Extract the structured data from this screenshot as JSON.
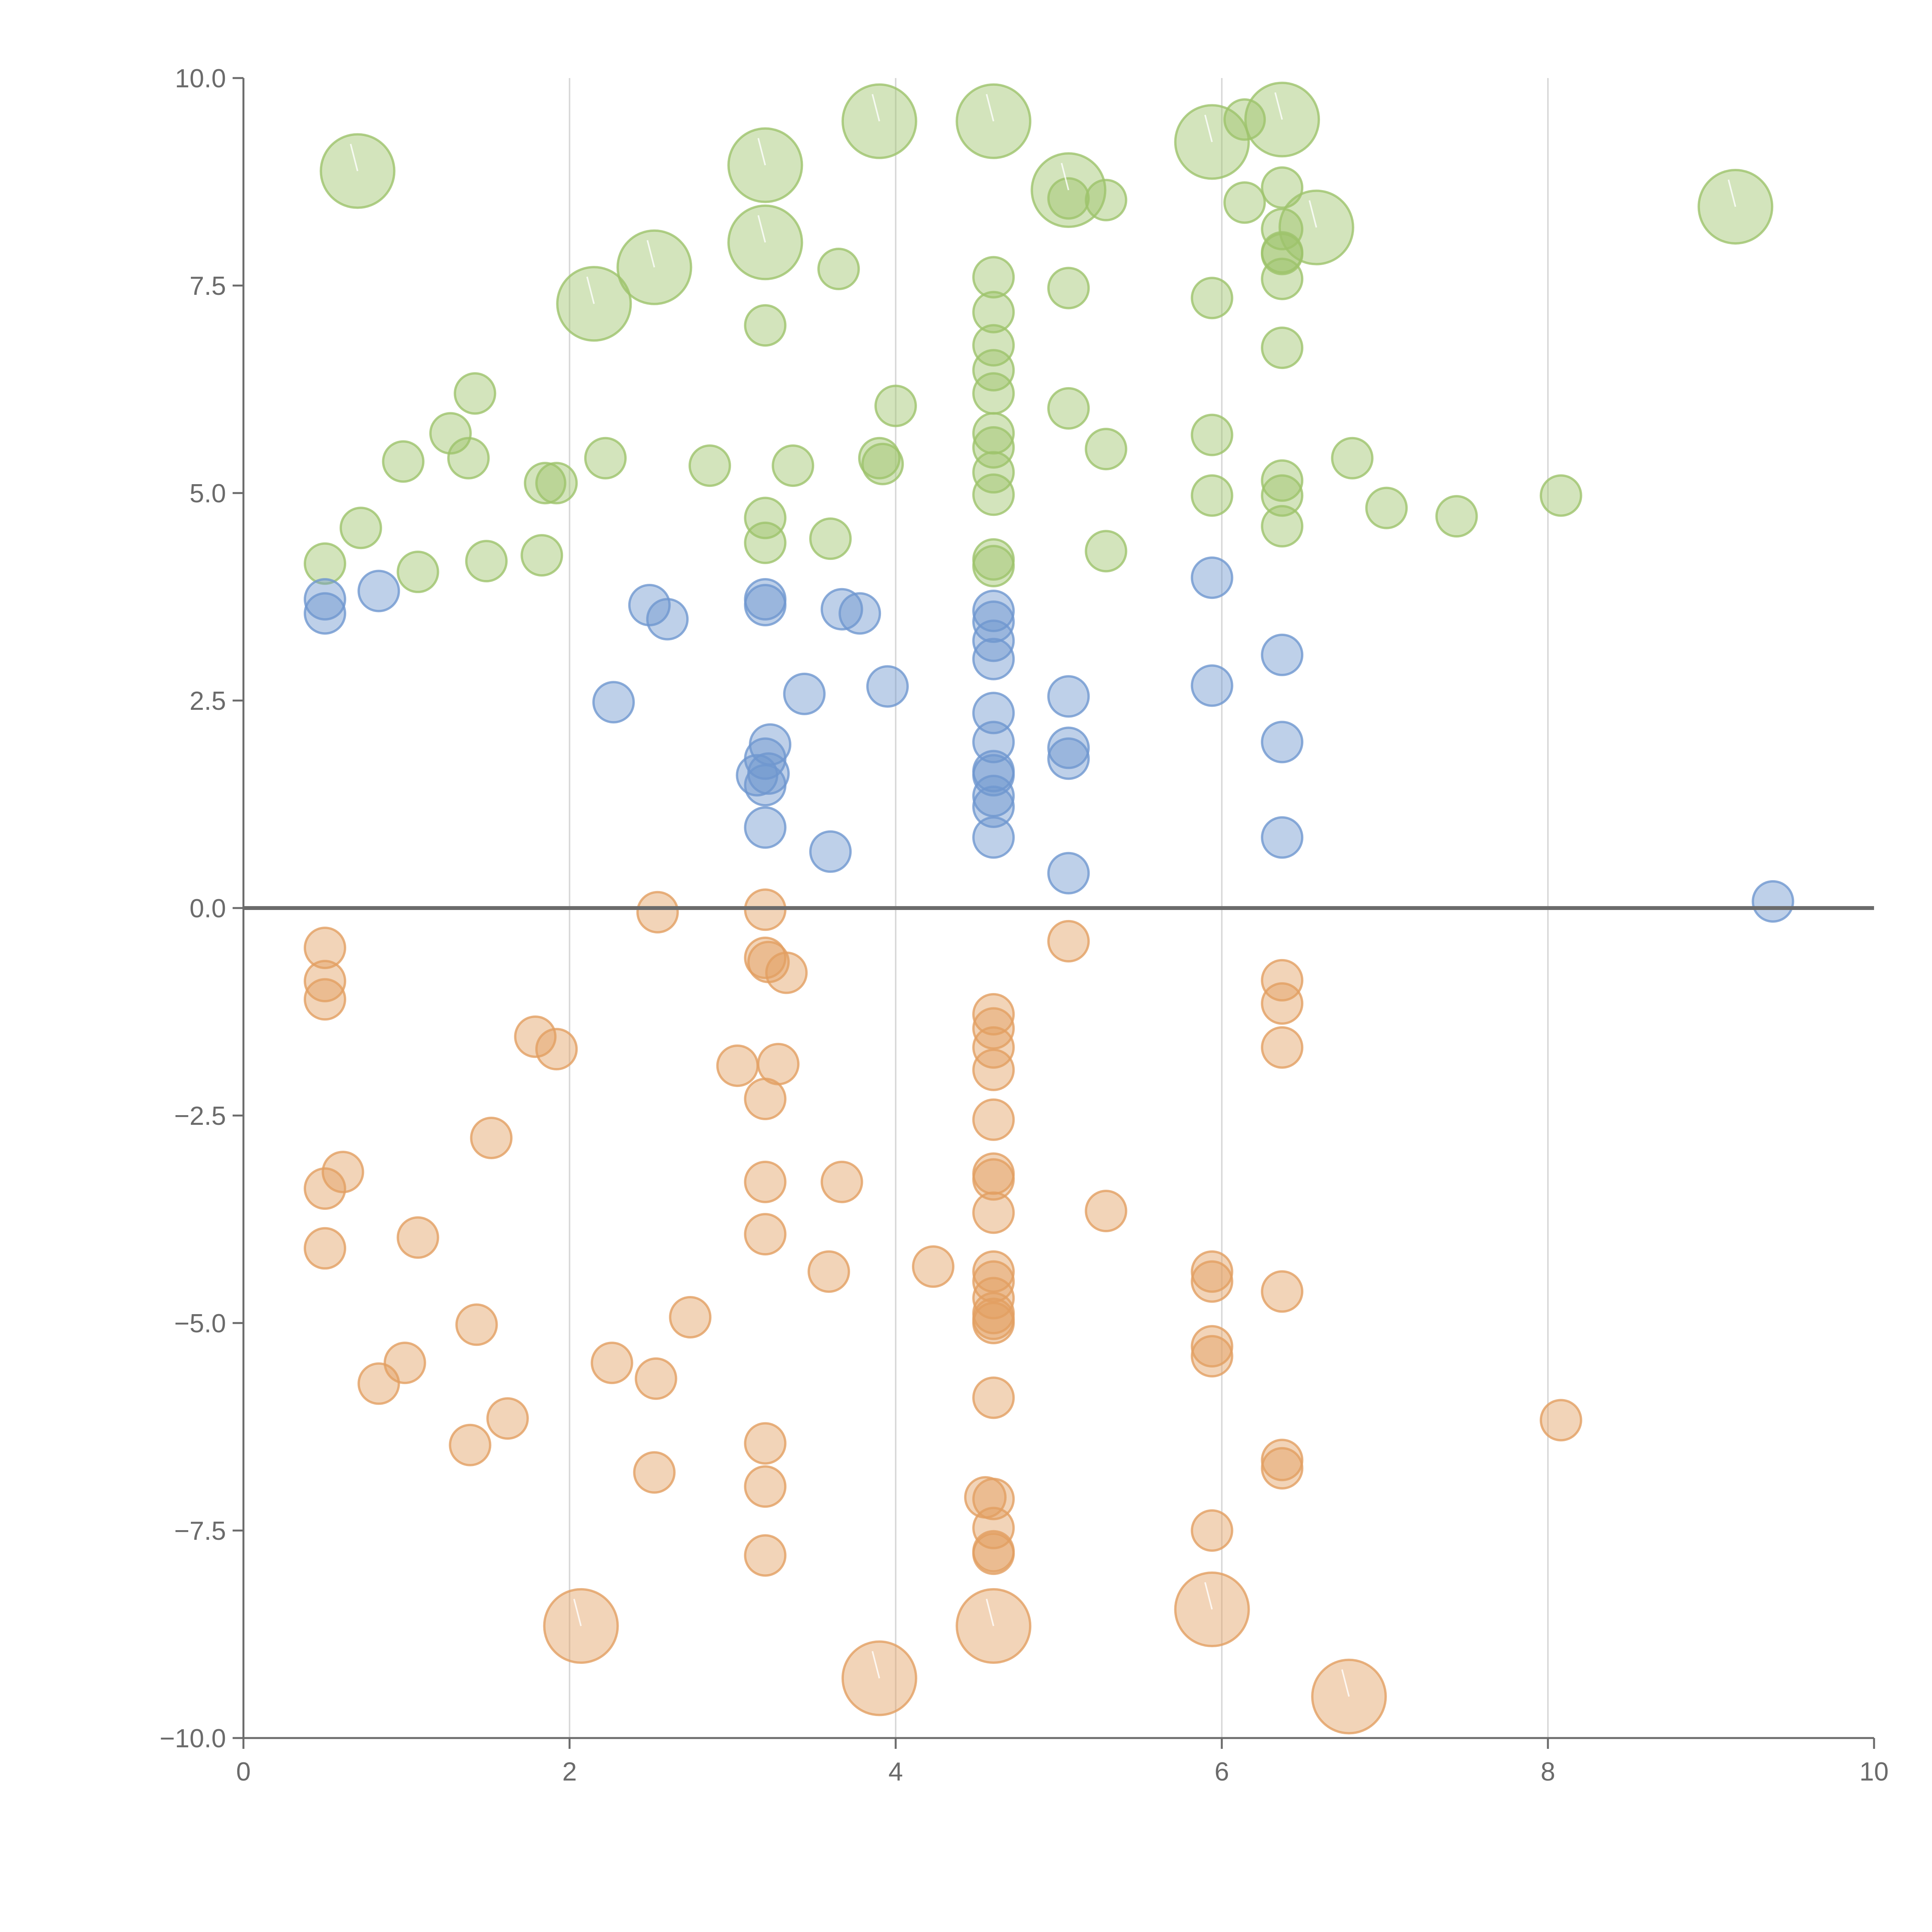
{
  "chart_data": {
    "type": "scatter",
    "title": "",
    "xlabel": "",
    "ylabel": "",
    "xlim": [
      0,
      10
    ],
    "ylim": [
      -10,
      10
    ],
    "x_ticks": [
      0,
      2,
      4,
      6,
      8,
      10
    ],
    "x_tick_labels": [
      "0",
      "2",
      "4",
      "6",
      "8",
      "10"
    ],
    "y_ticks": [
      -10,
      -7.5,
      -5,
      -2.5,
      0,
      2.5,
      5,
      7.5,
      10
    ],
    "y_tick_labels": [
      "−10.0",
      "−7.5",
      "−5.0",
      "−2.5",
      "0.0",
      "2.5",
      "5.0",
      "7.5",
      "10.0"
    ],
    "vertical_grid_at": [
      2,
      4,
      6,
      8
    ],
    "reference_line_y": 0,
    "colors": {
      "green": "#9dc36b",
      "blue": "#6f97cf",
      "orange": "#e29f61",
      "axis": "#6b6b6b",
      "grid": "#d9d9d9",
      "zero_line": "#6b6b6b"
    },
    "series": [
      {
        "name": "green",
        "color": "#9dc36b",
        "points": [
          [
            0.5,
            4.15
          ],
          [
            0.72,
            4.58
          ],
          [
            0.98,
            5.38
          ],
          [
            1.07,
            4.05
          ],
          [
            1.27,
            5.72
          ],
          [
            1.38,
            5.42
          ],
          [
            1.42,
            6.2
          ],
          [
            1.49,
            4.18
          ],
          [
            1.83,
            4.25
          ],
          [
            1.85,
            5.12
          ],
          [
            1.92,
            5.12
          ],
          [
            2.22,
            5.42
          ],
          [
            2.86,
            5.33
          ],
          [
            3.2,
            4.7
          ],
          [
            3.2,
            4.4
          ],
          [
            3.37,
            5.33
          ],
          [
            3.6,
            4.45
          ],
          [
            3.9,
            5.42
          ],
          [
            3.92,
            5.35
          ],
          [
            3.2,
            7.02
          ],
          [
            3.65,
            7.7
          ],
          [
            4.0,
            6.05
          ],
          [
            4.6,
            7.6
          ],
          [
            4.6,
            7.18
          ],
          [
            4.6,
            6.78
          ],
          [
            4.6,
            6.48
          ],
          [
            4.6,
            6.2
          ],
          [
            4.6,
            5.72
          ],
          [
            4.6,
            5.55
          ],
          [
            4.6,
            5.25
          ],
          [
            4.6,
            4.98
          ],
          [
            4.6,
            4.2
          ],
          [
            4.6,
            4.12
          ],
          [
            5.06,
            7.47
          ],
          [
            5.06,
            6.02
          ],
          [
            5.06,
            8.55
          ],
          [
            5.29,
            8.53
          ],
          [
            5.29,
            5.53
          ],
          [
            5.29,
            4.3
          ],
          [
            5.94,
            7.35
          ],
          [
            5.94,
            5.7
          ],
          [
            5.94,
            4.97
          ],
          [
            6.14,
            9.5
          ],
          [
            6.14,
            8.5
          ],
          [
            6.37,
            8.68
          ],
          [
            6.37,
            8.18
          ],
          [
            6.37,
            7.9
          ],
          [
            6.37,
            7.88
          ],
          [
            6.37,
            7.58
          ],
          [
            6.37,
            6.75
          ],
          [
            6.37,
            5.15
          ],
          [
            6.37,
            4.97
          ],
          [
            6.37,
            4.6
          ],
          [
            6.8,
            5.42
          ],
          [
            7.01,
            4.82
          ],
          [
            7.44,
            4.72
          ],
          [
            8.08,
            4.97
          ]
        ],
        "large_points": [
          [
            0.7,
            8.88
          ],
          [
            2.15,
            7.28
          ],
          [
            2.52,
            7.72
          ],
          [
            3.2,
            8.95
          ],
          [
            3.2,
            8.02
          ],
          [
            3.9,
            9.48
          ],
          [
            4.6,
            9.48
          ],
          [
            5.06,
            8.65
          ],
          [
            5.94,
            9.23
          ],
          [
            6.37,
            9.5
          ],
          [
            6.58,
            8.2
          ],
          [
            9.15,
            8.45
          ]
        ]
      },
      {
        "name": "blue",
        "color": "#6f97cf",
        "points": [
          [
            0.5,
            3.72
          ],
          [
            0.5,
            3.55
          ],
          [
            0.83,
            3.82
          ],
          [
            2.27,
            2.48
          ],
          [
            2.49,
            3.65
          ],
          [
            2.6,
            3.48
          ],
          [
            3.2,
            3.72
          ],
          [
            3.2,
            3.65
          ],
          [
            3.23,
            1.97
          ],
          [
            3.2,
            1.8
          ],
          [
            3.15,
            1.6
          ],
          [
            3.22,
            1.62
          ],
          [
            3.2,
            1.48
          ],
          [
            3.2,
            0.97
          ],
          [
            3.44,
            2.58
          ],
          [
            3.6,
            0.68
          ],
          [
            3.67,
            3.6
          ],
          [
            3.78,
            3.55
          ],
          [
            3.95,
            2.67
          ],
          [
            4.6,
            3.58
          ],
          [
            4.6,
            3.45
          ],
          [
            4.6,
            3.22
          ],
          [
            4.6,
            3.0
          ],
          [
            4.6,
            2.35
          ],
          [
            4.6,
            2.0
          ],
          [
            4.6,
            1.65
          ],
          [
            4.6,
            1.6
          ],
          [
            4.6,
            1.35
          ],
          [
            4.6,
            1.22
          ],
          [
            4.6,
            0.85
          ],
          [
            5.06,
            2.55
          ],
          [
            5.06,
            1.93
          ],
          [
            5.06,
            1.8
          ],
          [
            5.06,
            0.42
          ],
          [
            5.94,
            3.98
          ],
          [
            5.94,
            2.68
          ],
          [
            6.37,
            3.05
          ],
          [
            6.37,
            2.0
          ],
          [
            6.37,
            0.85
          ],
          [
            9.38,
            0.08
          ]
        ],
        "large_points": []
      },
      {
        "name": "orange",
        "color": "#e29f61",
        "points": [
          [
            0.5,
            -0.48
          ],
          [
            0.5,
            -0.88
          ],
          [
            0.5,
            -1.1
          ],
          [
            0.5,
            -3.38
          ],
          [
            0.61,
            -3.18
          ],
          [
            0.5,
            -4.1
          ],
          [
            0.83,
            -5.73
          ],
          [
            0.99,
            -5.48
          ],
          [
            1.07,
            -3.97
          ],
          [
            1.39,
            -6.47
          ],
          [
            1.43,
            -5.02
          ],
          [
            1.52,
            -2.77
          ],
          [
            1.62,
            -6.15
          ],
          [
            1.79,
            -1.55
          ],
          [
            1.92,
            -1.7
          ],
          [
            2.26,
            -5.48
          ],
          [
            2.52,
            -6.8
          ],
          [
            2.53,
            -5.67
          ],
          [
            2.54,
            -0.05
          ],
          [
            2.74,
            -4.93
          ],
          [
            3.03,
            -1.9
          ],
          [
            3.2,
            -0.02
          ],
          [
            3.2,
            -0.6
          ],
          [
            3.22,
            -0.65
          ],
          [
            3.33,
            -0.78
          ],
          [
            3.28,
            -1.88
          ],
          [
            3.2,
            -2.3
          ],
          [
            3.2,
            -3.3
          ],
          [
            3.2,
            -3.93
          ],
          [
            3.2,
            -6.45
          ],
          [
            3.2,
            -6.97
          ],
          [
            3.2,
            -7.8
          ],
          [
            3.59,
            -4.38
          ],
          [
            3.67,
            -3.3
          ],
          [
            4.23,
            -4.32
          ],
          [
            4.6,
            -1.28
          ],
          [
            4.6,
            -1.45
          ],
          [
            4.6,
            -1.68
          ],
          [
            4.6,
            -1.95
          ],
          [
            4.6,
            -2.55
          ],
          [
            4.6,
            -3.2
          ],
          [
            4.6,
            -3.27
          ],
          [
            4.6,
            -3.67
          ],
          [
            4.6,
            -4.38
          ],
          [
            4.6,
            -4.5
          ],
          [
            4.6,
            -4.7
          ],
          [
            4.6,
            -4.88
          ],
          [
            4.6,
            -4.95
          ],
          [
            4.6,
            -5.0
          ],
          [
            4.6,
            -5.9
          ],
          [
            4.55,
            -7.1
          ],
          [
            4.6,
            -7.12
          ],
          [
            4.6,
            -7.47
          ],
          [
            4.6,
            -7.75
          ],
          [
            4.6,
            -7.78
          ],
          [
            5.06,
            -0.4
          ],
          [
            5.29,
            -3.65
          ],
          [
            5.94,
            -4.38
          ],
          [
            5.94,
            -4.5
          ],
          [
            5.94,
            -5.28
          ],
          [
            5.94,
            -5.4
          ],
          [
            5.94,
            -7.5
          ],
          [
            6.37,
            -0.87
          ],
          [
            6.37,
            -1.15
          ],
          [
            6.37,
            -1.68
          ],
          [
            6.37,
            -4.62
          ],
          [
            6.37,
            -6.65
          ],
          [
            6.37,
            -6.75
          ],
          [
            8.08,
            -6.17
          ]
        ],
        "large_points": [
          [
            2.07,
            -8.65
          ],
          [
            3.9,
            -9.28
          ],
          [
            4.6,
            -8.65
          ],
          [
            5.94,
            -8.45
          ],
          [
            6.78,
            -9.5
          ]
        ]
      }
    ]
  }
}
